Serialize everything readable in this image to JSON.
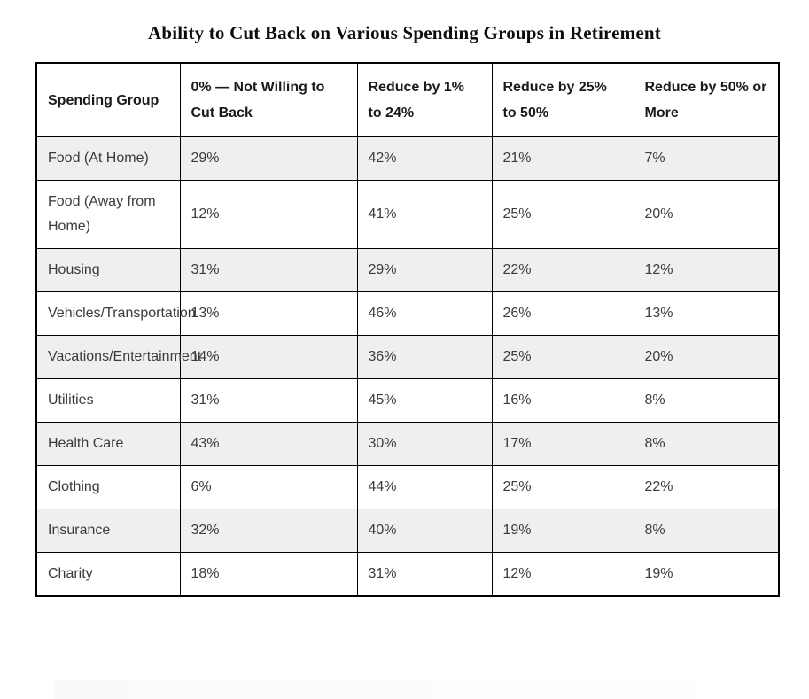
{
  "page": {
    "title": "Ability to Cut Back on Various Spending Groups in Retirement"
  },
  "colors": {
    "background": "#ffffff",
    "border": "#000000",
    "alt_row_background": "#efefef",
    "cell_text": "#3b3b3b",
    "header_text": "#1a1a1a"
  },
  "chart_data": {
    "type": "table",
    "title": "Ability to Cut Back on Various Spending Groups in Retirement",
    "columns": [
      "Spending Group",
      "0% — Not Willing to Cut Back",
      "Reduce by 1% to 24%",
      "Reduce by 25% to 50%",
      "Reduce by 50% or More"
    ],
    "rows": [
      [
        "Food (At Home)",
        "29%",
        "42%",
        "21%",
        "7%"
      ],
      [
        "Food (Away from Home)",
        "12%",
        "41%",
        "25%",
        "20%"
      ],
      [
        "Housing",
        "31%",
        "29%",
        "22%",
        "12%"
      ],
      [
        "Vehicles/Transportation",
        "13%",
        "46%",
        "26%",
        "13%"
      ],
      [
        "Vacations/Entertainment",
        "14%",
        "36%",
        "25%",
        "20%"
      ],
      [
        "Utilities",
        "31%",
        "45%",
        "16%",
        "8%"
      ],
      [
        "Health Care",
        "43%",
        "30%",
        "17%",
        "8%"
      ],
      [
        "Clothing",
        "6%",
        "44%",
        "25%",
        "22%"
      ],
      [
        "Insurance",
        "32%",
        "40%",
        "19%",
        "8%"
      ],
      [
        "Charity",
        "18%",
        "31%",
        "12%",
        "19%"
      ]
    ],
    "layout": {
      "alternating_row_shading": true,
      "shaded_row_indices": [
        0,
        2,
        4,
        6,
        8
      ],
      "grid": true
    }
  }
}
